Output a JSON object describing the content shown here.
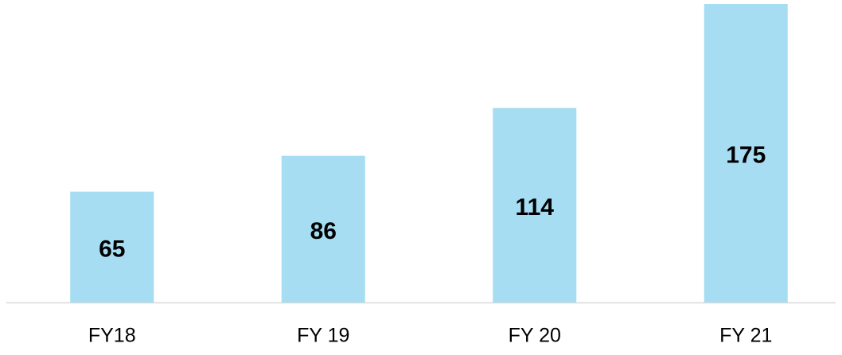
{
  "chart_data": {
    "type": "bar",
    "categories": [
      "FY18",
      "FY 19",
      "FY 20",
      "FY 21"
    ],
    "values": [
      65,
      86,
      114,
      175
    ],
    "color": "#a6ddf3"
  }
}
